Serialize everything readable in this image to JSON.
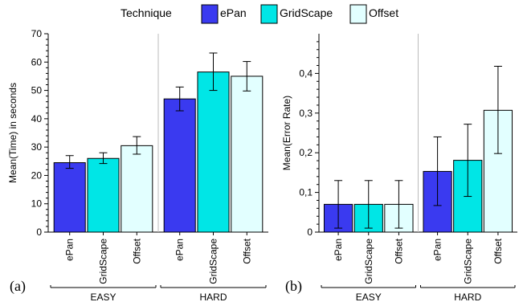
{
  "legend": {
    "title": "Technique",
    "items": [
      {
        "label": "ePan",
        "color": "#3a3af0"
      },
      {
        "label": "GridScape",
        "color": "#00e6e6"
      },
      {
        "label": "Offset",
        "color": "#e2ffff"
      }
    ]
  },
  "panels": [
    {
      "label": "(a)"
    },
    {
      "label": "(b)"
    }
  ],
  "chart_data": [
    {
      "type": "bar",
      "panel": "(a)",
      "ylabel": "Mean(Time) in seconds",
      "ylim": [
        0,
        70
      ],
      "yticks": [
        "0",
        "10",
        "20",
        "30",
        "40",
        "50",
        "60",
        "70"
      ],
      "ytick_values": [
        0,
        10,
        20,
        30,
        40,
        50,
        60,
        70
      ],
      "groups": [
        "EASY",
        "HARD"
      ],
      "categories": [
        "ePan",
        "GridScape",
        "Offset"
      ],
      "series": [
        {
          "name": "EASY",
          "values": [
            24.5,
            26,
            30.5
          ],
          "err_low": [
            22.5,
            24.2,
            27.5
          ],
          "err_high": [
            27,
            28,
            33.7
          ]
        },
        {
          "name": "HARD",
          "values": [
            47,
            56.5,
            55
          ],
          "err_low": [
            42.8,
            50,
            49.8
          ],
          "err_high": [
            51.2,
            63.2,
            60.2
          ]
        }
      ],
      "grid": false
    },
    {
      "type": "bar",
      "panel": "(b)",
      "ylabel": "Mean(Error Rate)",
      "ylim": [
        0,
        0.5
      ],
      "yticks": [
        "0",
        "0,1",
        "0,2",
        "0,3",
        "0,4"
      ],
      "ytick_values": [
        0,
        0.1,
        0.2,
        0.3,
        0.4
      ],
      "groups": [
        "EASY",
        "HARD"
      ],
      "categories": [
        "ePan",
        "GridScape",
        "Offset"
      ],
      "series": [
        {
          "name": "EASY",
          "values": [
            0.07,
            0.07,
            0.07
          ],
          "err_low": [
            0.01,
            0.01,
            0.01
          ],
          "err_high": [
            0.13,
            0.13,
            0.13
          ]
        },
        {
          "name": "HARD",
          "values": [
            0.153,
            0.181,
            0.307
          ],
          "err_low": [
            0.067,
            0.09,
            0.198
          ],
          "err_high": [
            0.24,
            0.272,
            0.418
          ]
        }
      ],
      "grid": false
    }
  ]
}
